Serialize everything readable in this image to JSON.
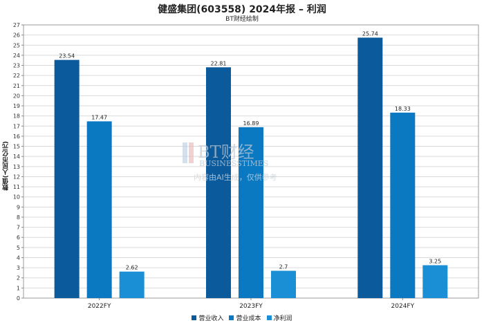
{
  "chart_data": {
    "type": "bar",
    "title": "健盛集团(603558) 2024年报 – 利润",
    "subtitle": "BT财经绘制",
    "xlabel": "",
    "ylabel": "数值(人民币亿元)",
    "ylim": [
      0,
      27
    ],
    "ytick_step": 1,
    "grid": true,
    "legend_position": "bottom",
    "categories": [
      "2022FY",
      "2023FY",
      "2024FY"
    ],
    "series": [
      {
        "name": "营业收入",
        "color": "#0a5a9c",
        "values": [
          23.54,
          22.81,
          25.74
        ]
      },
      {
        "name": "营业成本",
        "color": "#0b79c2",
        "values": [
          17.47,
          16.89,
          18.33
        ]
      },
      {
        "name": "净利润",
        "color": "#1a8fd6",
        "values": [
          2.62,
          2.7,
          3.25
        ]
      }
    ]
  },
  "watermark": {
    "logo_text": "BT财经",
    "brand": "BUSINESSTIMES",
    "notice": "内容由AI生成，仅供参考"
  }
}
